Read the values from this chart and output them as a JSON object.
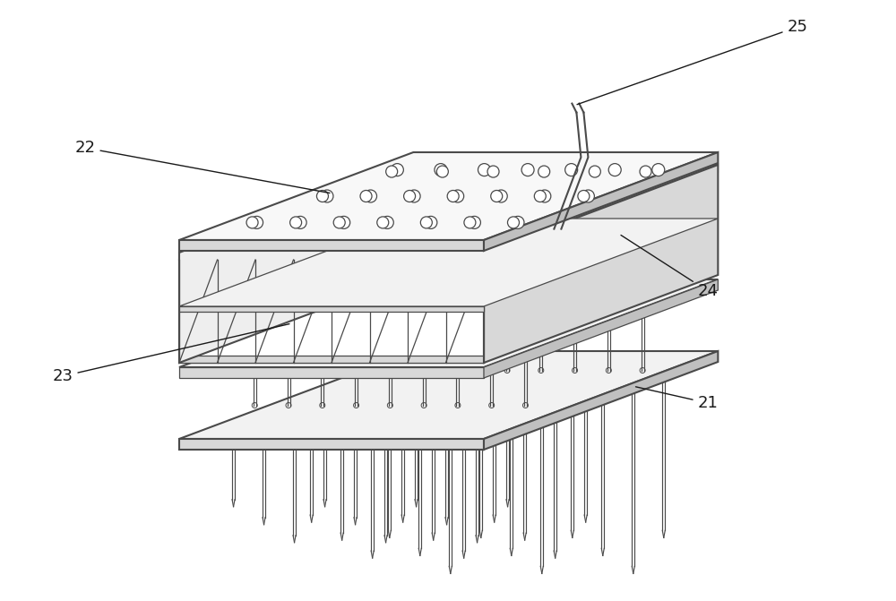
{
  "bg_color": "#ffffff",
  "line_color": "#4a4a4a",
  "lw_main": 1.5,
  "lw_thin": 0.9,
  "lw_needle": 0.85,
  "fig_width": 10.0,
  "fig_height": 6.71,
  "label_fontsize": 13,
  "label_color": "#1a1a1a",
  "plate_face": "#f2f2f2",
  "plate_side": "#d8d8d8",
  "plate_dark": "#c0c0c0",
  "grid_face": "#e8e8e8"
}
